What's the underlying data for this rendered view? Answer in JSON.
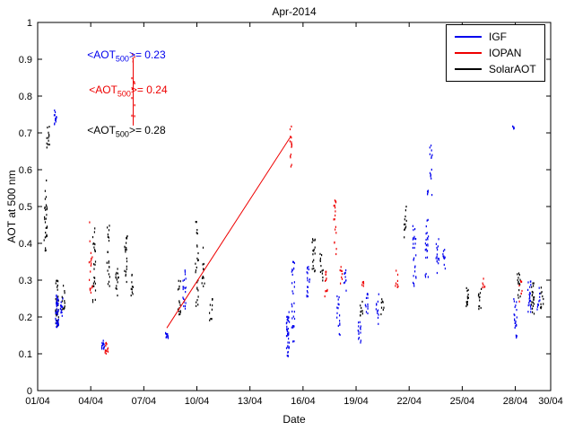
{
  "annotations": [
    {
      "prefix": "<AOT",
      "sub": "500",
      "suffix": ">= 0.23",
      "color": "#0000ee",
      "day": 3.8,
      "y": 0.91
    },
    {
      "prefix": "<AOT",
      "sub": "500",
      "suffix": ">= 0.24",
      "color": "#ee0000",
      "day": 3.9,
      "y": 0.815
    },
    {
      "prefix": "<AOT",
      "sub": "500",
      "suffix": ">= 0.28",
      "color": "#000000",
      "day": 3.8,
      "y": 0.705
    }
  ],
  "chart_data": {
    "type": "scatter",
    "title": "Apr-2014",
    "xlabel": "Date",
    "ylabel": "AOT at 500 nm",
    "xlim_days": [
      1,
      30
    ],
    "ylim": [
      0,
      1
    ],
    "grid": false,
    "legend_position": "top-right",
    "x_ticks": {
      "days": [
        1,
        4,
        7,
        10,
        13,
        16,
        19,
        22,
        25,
        28,
        30
      ],
      "labels": [
        "01/04",
        "04/04",
        "07/04",
        "10/04",
        "13/04",
        "16/04",
        "19/04",
        "22/04",
        "25/04",
        "28/04",
        "30/04"
      ]
    },
    "y_ticks": {
      "values": [
        0,
        0.1,
        0.2,
        0.3,
        0.4,
        0.5,
        0.6,
        0.7,
        0.8,
        0.9,
        1
      ],
      "labels": [
        "0",
        "0.1",
        "0.2",
        "0.3",
        "0.4",
        "0.5",
        "0.6",
        "0.7",
        "0.8",
        "0.9",
        "1"
      ]
    },
    "cluster_format": [
      "day",
      "y_min",
      "y_max",
      "n_points"
    ],
    "series": [
      {
        "name": "IGF",
        "color": "#0000ee",
        "clusters": [
          [
            2.0,
            0.72,
            0.77,
            12
          ],
          [
            2.1,
            0.17,
            0.26,
            40
          ],
          [
            2.35,
            0.2,
            0.25,
            15
          ],
          [
            4.7,
            0.11,
            0.14,
            14
          ],
          [
            8.3,
            0.14,
            0.16,
            10
          ],
          [
            9.3,
            0.22,
            0.33,
            20
          ],
          [
            15.15,
            0.09,
            0.22,
            40
          ],
          [
            15.45,
            0.12,
            0.35,
            30
          ],
          [
            16.3,
            0.25,
            0.34,
            18
          ],
          [
            18.0,
            0.15,
            0.26,
            16
          ],
          [
            18.35,
            0.27,
            0.33,
            10
          ],
          [
            19.2,
            0.13,
            0.2,
            14
          ],
          [
            19.6,
            0.2,
            0.27,
            12
          ],
          [
            20.2,
            0.18,
            0.27,
            12
          ],
          [
            22.3,
            0.28,
            0.45,
            25
          ],
          [
            23.0,
            0.3,
            0.55,
            28
          ],
          [
            23.25,
            0.52,
            0.67,
            14
          ],
          [
            23.6,
            0.3,
            0.42,
            15
          ],
          [
            24.0,
            0.33,
            0.4,
            10
          ],
          [
            27.9,
            0.7,
            0.73,
            4
          ],
          [
            28.0,
            0.14,
            0.25,
            22
          ],
          [
            28.8,
            0.2,
            0.31,
            22
          ],
          [
            29.3,
            0.22,
            0.28,
            10
          ]
        ],
        "lines": []
      },
      {
        "name": "IOPAN",
        "color": "#ee0000",
        "clusters": [
          [
            4.0,
            0.25,
            0.47,
            18
          ],
          [
            4.9,
            0.1,
            0.13,
            12
          ],
          [
            6.4,
            0.72,
            0.93,
            12
          ],
          [
            15.3,
            0.6,
            0.72,
            15
          ],
          [
            17.3,
            0.25,
            0.33,
            12
          ],
          [
            17.8,
            0.35,
            0.52,
            18
          ],
          [
            18.15,
            0.28,
            0.35,
            8
          ],
          [
            19.4,
            0.28,
            0.32,
            6
          ],
          [
            21.3,
            0.28,
            0.33,
            8
          ],
          [
            26.2,
            0.28,
            0.31,
            6
          ],
          [
            28.3,
            0.24,
            0.3,
            8
          ]
        ],
        "lines": [
          [
            [
              8.3,
              0.17
            ],
            [
              15.3,
              0.69
            ]
          ],
          [
            [
              6.4,
              0.72
            ],
            [
              6.4,
              0.9
            ]
          ]
        ]
      },
      {
        "name": "SolarAOT",
        "color": "#000000",
        "clusters": [
          [
            1.45,
            0.38,
            0.58,
            28
          ],
          [
            1.6,
            0.65,
            0.72,
            12
          ],
          [
            2.1,
            0.17,
            0.3,
            30
          ],
          [
            2.45,
            0.22,
            0.3,
            15
          ],
          [
            4.2,
            0.22,
            0.45,
            25
          ],
          [
            5.0,
            0.28,
            0.45,
            20
          ],
          [
            5.5,
            0.25,
            0.35,
            14
          ],
          [
            6.0,
            0.28,
            0.42,
            20
          ],
          [
            6.35,
            0.25,
            0.32,
            10
          ],
          [
            9.0,
            0.2,
            0.3,
            15
          ],
          [
            10.0,
            0.22,
            0.47,
            25
          ],
          [
            10.35,
            0.28,
            0.4,
            12
          ],
          [
            10.8,
            0.18,
            0.25,
            10
          ],
          [
            16.6,
            0.3,
            0.42,
            18
          ],
          [
            17.05,
            0.28,
            0.38,
            12
          ],
          [
            19.3,
            0.2,
            0.25,
            10
          ],
          [
            20.5,
            0.2,
            0.25,
            8
          ],
          [
            21.8,
            0.4,
            0.5,
            12
          ],
          [
            25.3,
            0.22,
            0.28,
            15
          ],
          [
            26.0,
            0.22,
            0.28,
            12
          ],
          [
            28.2,
            0.25,
            0.32,
            15
          ],
          [
            29.0,
            0.2,
            0.3,
            20
          ],
          [
            29.5,
            0.22,
            0.28,
            10
          ]
        ],
        "lines": []
      }
    ]
  }
}
